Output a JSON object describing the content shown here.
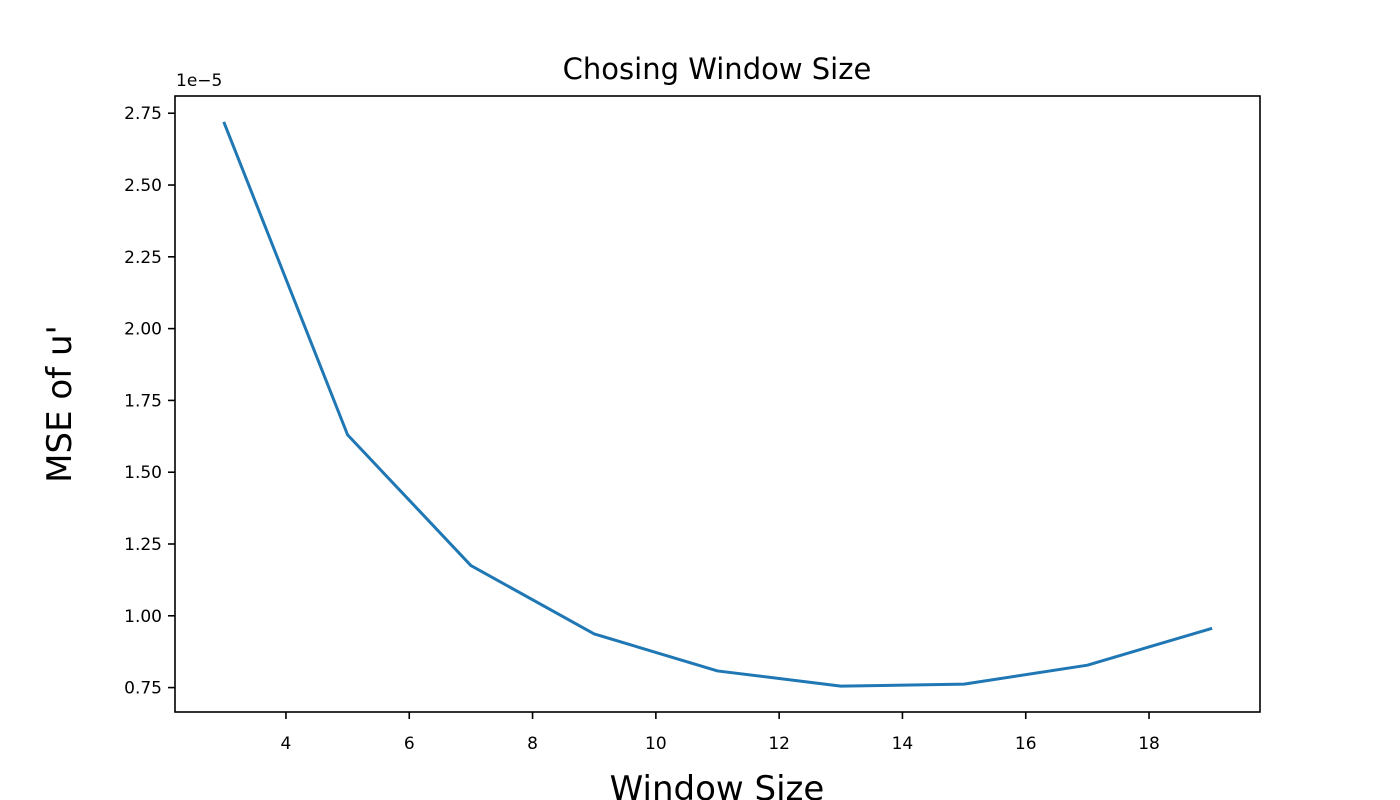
{
  "chart_data": {
    "type": "line",
    "title": "Chosing Window Size",
    "xlabel": "Window Size",
    "ylabel": "MSE of u'",
    "y_offset_label": "1e−5",
    "y_scale_factor": 1e-05,
    "xlim": [
      2.2,
      19.8
    ],
    "ylim": [
      0.665,
      2.81
    ],
    "xticks": [
      4,
      6,
      8,
      10,
      12,
      14,
      16,
      18
    ],
    "xtick_labels": [
      "4",
      "6",
      "8",
      "10",
      "12",
      "14",
      "16",
      "18"
    ],
    "yticks": [
      0.75,
      1.0,
      1.25,
      1.5,
      1.75,
      2.0,
      2.25,
      2.5,
      2.75
    ],
    "ytick_labels": [
      "0.75",
      "1.00",
      "1.25",
      "1.50",
      "1.75",
      "2.00",
      "2.25",
      "2.50",
      "2.75"
    ],
    "grid": false,
    "series": [
      {
        "color": "#1f77b4",
        "x": [
          3,
          5,
          7,
          9,
          11,
          13,
          15,
          17,
          19
        ],
        "y": [
          2.715,
          1.63,
          1.175,
          0.937,
          0.808,
          0.755,
          0.762,
          0.828,
          0.955
        ]
      }
    ]
  }
}
